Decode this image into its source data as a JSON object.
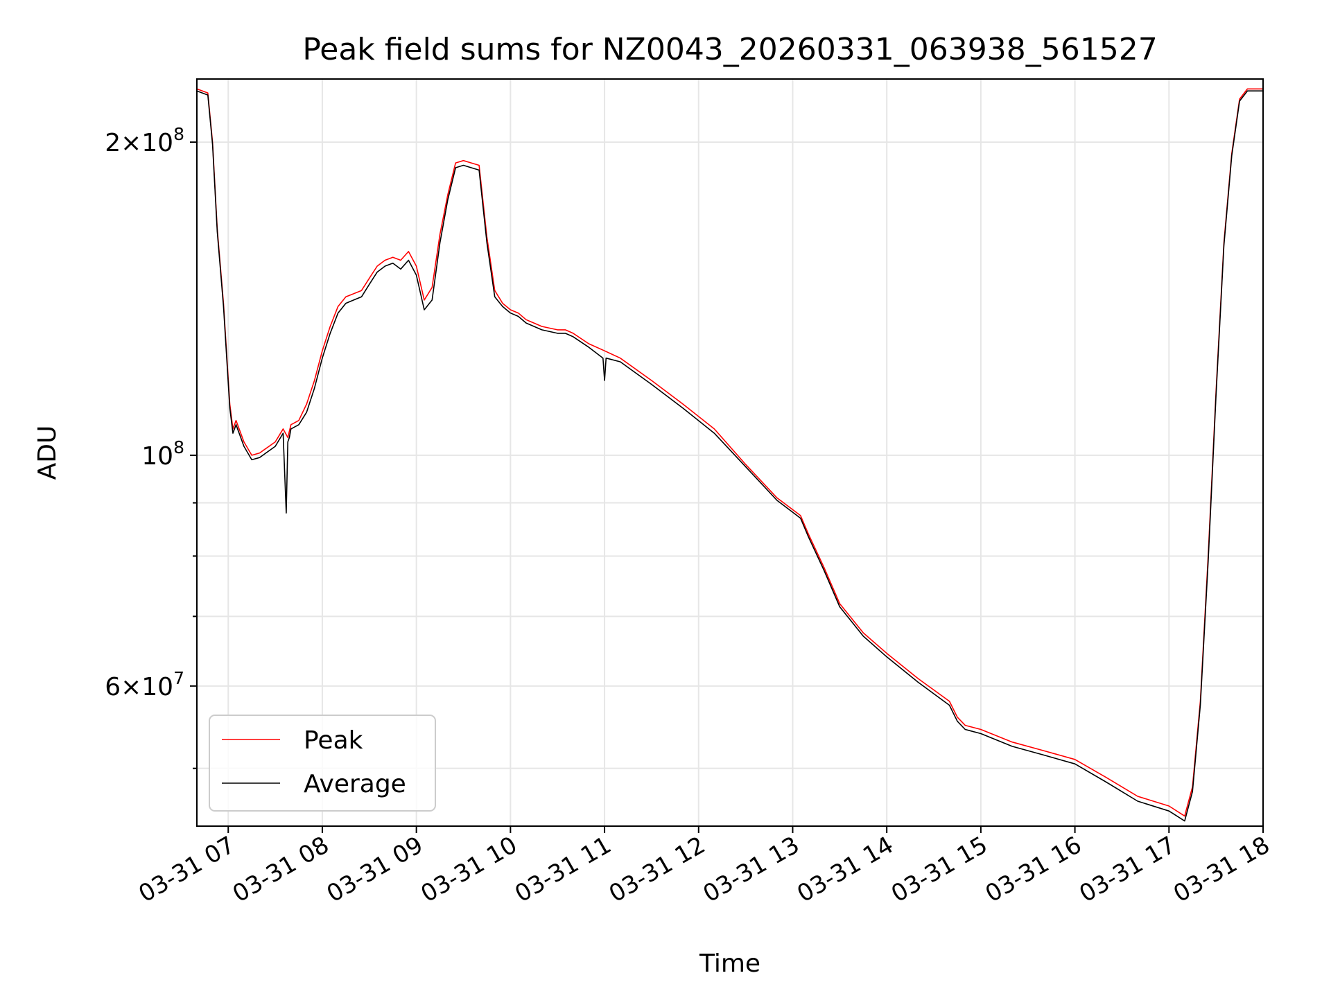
{
  "chart_data": {
    "type": "line",
    "title": "Peak field sums for NZ0043_20260331_063938_561527",
    "xlabel": "Time",
    "ylabel": "ADU",
    "x_scale": "time",
    "y_scale": "log",
    "xlim": [
      "2026-03-31 06:40",
      "2026-03-31 18:00"
    ],
    "ylim": [
      44000000,
      230000000
    ],
    "x_ticks": [
      {
        "value": "2026-03-31 07:00",
        "label": "03-31 07"
      },
      {
        "value": "2026-03-31 08:00",
        "label": "03-31 08"
      },
      {
        "value": "2026-03-31 09:00",
        "label": "03-31 09"
      },
      {
        "value": "2026-03-31 10:00",
        "label": "03-31 10"
      },
      {
        "value": "2026-03-31 11:00",
        "label": "03-31 11"
      },
      {
        "value": "2026-03-31 12:00",
        "label": "03-31 12"
      },
      {
        "value": "2026-03-31 13:00",
        "label": "03-31 13"
      },
      {
        "value": "2026-03-31 14:00",
        "label": "03-31 14"
      },
      {
        "value": "2026-03-31 15:00",
        "label": "03-31 15"
      },
      {
        "value": "2026-03-31 16:00",
        "label": "03-31 16"
      },
      {
        "value": "2026-03-31 17:00",
        "label": "03-31 17"
      },
      {
        "value": "2026-03-31 18:00",
        "label": "03-31 18"
      }
    ],
    "y_ticks_major": [
      {
        "value": 200000000,
        "base": "2",
        "exp": "8"
      },
      {
        "value": 100000000,
        "base": "",
        "exp": "8"
      },
      {
        "value": 60000000,
        "base": "6",
        "exp": "7"
      }
    ],
    "y_ticks_minor": [
      50000000,
      70000000,
      80000000,
      90000000
    ],
    "grid": true,
    "legend": {
      "position": "lower-left",
      "entries": [
        "Peak",
        "Average"
      ]
    },
    "series": [
      {
        "name": "Peak",
        "color": "#ff0000",
        "x": [
          "2026-03-31 06:40",
          "2026-03-31 06:47",
          "2026-03-31 06:50",
          "2026-03-31 06:53",
          "2026-03-31 06:57",
          "2026-03-31 07:01",
          "2026-03-31 07:03",
          "2026-03-31 07:05",
          "2026-03-31 07:10",
          "2026-03-31 07:15",
          "2026-03-31 07:20",
          "2026-03-31 07:30",
          "2026-03-31 07:35",
          "2026-03-31 07:38",
          "2026-03-31 07:40",
          "2026-03-31 07:45",
          "2026-03-31 07:50",
          "2026-03-31 07:55",
          "2026-03-31 08:00",
          "2026-03-31 08:05",
          "2026-03-31 08:10",
          "2026-03-31 08:15",
          "2026-03-31 08:20",
          "2026-03-31 08:25",
          "2026-03-31 08:30",
          "2026-03-31 08:35",
          "2026-03-31 08:40",
          "2026-03-31 08:45",
          "2026-03-31 08:50",
          "2026-03-31 08:55",
          "2026-03-31 09:00",
          "2026-03-31 09:05",
          "2026-03-31 09:10",
          "2026-03-31 09:15",
          "2026-03-31 09:20",
          "2026-03-31 09:25",
          "2026-03-31 09:30",
          "2026-03-31 09:35",
          "2026-03-31 09:40",
          "2026-03-31 09:45",
          "2026-03-31 09:50",
          "2026-03-31 09:55",
          "2026-03-31 10:00",
          "2026-03-31 10:05",
          "2026-03-31 10:10",
          "2026-03-31 10:15",
          "2026-03-31 10:20",
          "2026-03-31 10:30",
          "2026-03-31 10:35",
          "2026-03-31 10:40",
          "2026-03-31 10:50",
          "2026-03-31 11:00",
          "2026-03-31 11:10",
          "2026-03-31 11:30",
          "2026-03-31 11:50",
          "2026-03-31 12:10",
          "2026-03-31 12:30",
          "2026-03-31 12:50",
          "2026-03-31 13:05",
          "2026-03-31 13:10",
          "2026-03-31 13:20",
          "2026-03-31 13:30",
          "2026-03-31 13:45",
          "2026-03-31 14:00",
          "2026-03-31 14:20",
          "2026-03-31 14:40",
          "2026-03-31 14:45",
          "2026-03-31 14:50",
          "2026-03-31 15:00",
          "2026-03-31 15:20",
          "2026-03-31 15:40",
          "2026-03-31 16:00",
          "2026-03-31 16:20",
          "2026-03-31 16:40",
          "2026-03-31 17:00",
          "2026-03-31 17:10",
          "2026-03-31 17:15",
          "2026-03-31 17:20",
          "2026-03-31 17:25",
          "2026-03-31 17:30",
          "2026-03-31 17:35",
          "2026-03-31 17:40",
          "2026-03-31 17:45",
          "2026-03-31 17:50",
          "2026-03-31 17:55",
          "2026-03-31 18:00"
        ],
        "y": [
          225000000,
          223000000,
          200000000,
          165000000,
          140000000,
          112000000,
          106000000,
          108000000,
          103000000,
          100000000,
          100500000,
          103000000,
          106000000,
          104000000,
          107000000,
          108000000,
          112000000,
          118000000,
          126000000,
          133000000,
          139000000,
          142000000,
          143000000,
          144000000,
          148000000,
          152000000,
          154000000,
          155000000,
          154000000,
          157000000,
          152000000,
          141000000,
          145000000,
          163000000,
          178000000,
          191000000,
          192000000,
          191000000,
          190000000,
          162000000,
          144000000,
          140000000,
          138000000,
          137000000,
          135000000,
          134000000,
          133000000,
          132000000,
          132000000,
          131000000,
          128000000,
          126000000,
          124000000,
          118000000,
          112000000,
          106000000,
          98000000,
          91000000,
          87500000,
          84000000,
          78000000,
          72000000,
          67500000,
          64500000,
          61000000,
          58000000,
          56000000,
          55000000,
          54500000,
          53000000,
          52000000,
          51000000,
          49000000,
          47000000,
          46000000,
          45000000,
          48000000,
          58000000,
          80000000,
          115000000,
          160000000,
          195000000,
          220000000,
          225000000,
          225000000,
          225000000
        ]
      },
      {
        "name": "Average",
        "color": "#000000",
        "x": [
          "2026-03-31 06:40",
          "2026-03-31 06:47",
          "2026-03-31 06:50",
          "2026-03-31 06:53",
          "2026-03-31 06:57",
          "2026-03-31 07:01",
          "2026-03-31 07:03",
          "2026-03-31 07:05",
          "2026-03-31 07:10",
          "2026-03-31 07:15",
          "2026-03-31 07:20",
          "2026-03-31 07:30",
          "2026-03-31 07:35",
          "2026-03-31 07:37",
          "2026-03-31 07:38",
          "2026-03-31 07:39",
          "2026-03-31 07:40",
          "2026-03-31 07:45",
          "2026-03-31 07:50",
          "2026-03-31 07:55",
          "2026-03-31 08:00",
          "2026-03-31 08:05",
          "2026-03-31 08:10",
          "2026-03-31 08:15",
          "2026-03-31 08:20",
          "2026-03-31 08:25",
          "2026-03-31 08:30",
          "2026-03-31 08:35",
          "2026-03-31 08:40",
          "2026-03-31 08:45",
          "2026-03-31 08:50",
          "2026-03-31 08:55",
          "2026-03-31 09:00",
          "2026-03-31 09:05",
          "2026-03-31 09:10",
          "2026-03-31 09:15",
          "2026-03-31 09:20",
          "2026-03-31 09:25",
          "2026-03-31 09:30",
          "2026-03-31 09:35",
          "2026-03-31 09:40",
          "2026-03-31 09:45",
          "2026-03-31 09:50",
          "2026-03-31 09:55",
          "2026-03-31 10:00",
          "2026-03-31 10:05",
          "2026-03-31 10:10",
          "2026-03-31 10:15",
          "2026-03-31 10:20",
          "2026-03-31 10:30",
          "2026-03-31 10:35",
          "2026-03-31 10:40",
          "2026-03-31 10:50",
          "2026-03-31 10:59",
          "2026-03-31 11:00",
          "2026-03-31 11:01",
          "2026-03-31 11:10",
          "2026-03-31 11:30",
          "2026-03-31 11:50",
          "2026-03-31 12:10",
          "2026-03-31 12:30",
          "2026-03-31 12:50",
          "2026-03-31 13:05",
          "2026-03-31 13:10",
          "2026-03-31 13:20",
          "2026-03-31 13:30",
          "2026-03-31 13:45",
          "2026-03-31 14:00",
          "2026-03-31 14:20",
          "2026-03-31 14:40",
          "2026-03-31 14:45",
          "2026-03-31 14:50",
          "2026-03-31 15:00",
          "2026-03-31 15:20",
          "2026-03-31 15:40",
          "2026-03-31 16:00",
          "2026-03-31 16:20",
          "2026-03-31 16:40",
          "2026-03-31 17:00",
          "2026-03-31 17:10",
          "2026-03-31 17:15",
          "2026-03-31 17:20",
          "2026-03-31 17:25",
          "2026-03-31 17:30",
          "2026-03-31 17:35",
          "2026-03-31 17:40",
          "2026-03-31 17:45",
          "2026-03-31 17:50",
          "2026-03-31 17:55",
          "2026-03-31 18:00"
        ],
        "y": [
          224000000,
          222000000,
          199000000,
          164000000,
          139000000,
          111000000,
          105000000,
          107000000,
          102000000,
          99000000,
          99500000,
          102000000,
          105000000,
          88000000,
          103000000,
          104000000,
          106000000,
          107000000,
          110000000,
          116000000,
          124000000,
          131000000,
          137000000,
          140000000,
          141000000,
          142000000,
          146000000,
          150000000,
          152000000,
          153000000,
          151000000,
          154000000,
          149000000,
          138000000,
          141000000,
          160000000,
          176000000,
          189000000,
          190000000,
          189000000,
          188000000,
          160000000,
          142000000,
          139000000,
          137000000,
          136000000,
          134000000,
          133000000,
          132000000,
          131000000,
          131000000,
          130000000,
          127000000,
          124000000,
          118000000,
          124000000,
          123000000,
          117000000,
          111000000,
          105000000,
          97500000,
          90500000,
          87000000,
          83500000,
          77500000,
          71500000,
          67000000,
          64000000,
          60500000,
          57500000,
          55500000,
          54500000,
          54000000,
          52500000,
          51500000,
          50500000,
          48500000,
          46500000,
          45500000,
          44500000,
          47500000,
          57500000,
          79000000,
          114000000,
          159000000,
          194000000,
          219000000,
          224000000,
          224000000,
          224000000
        ]
      }
    ]
  }
}
